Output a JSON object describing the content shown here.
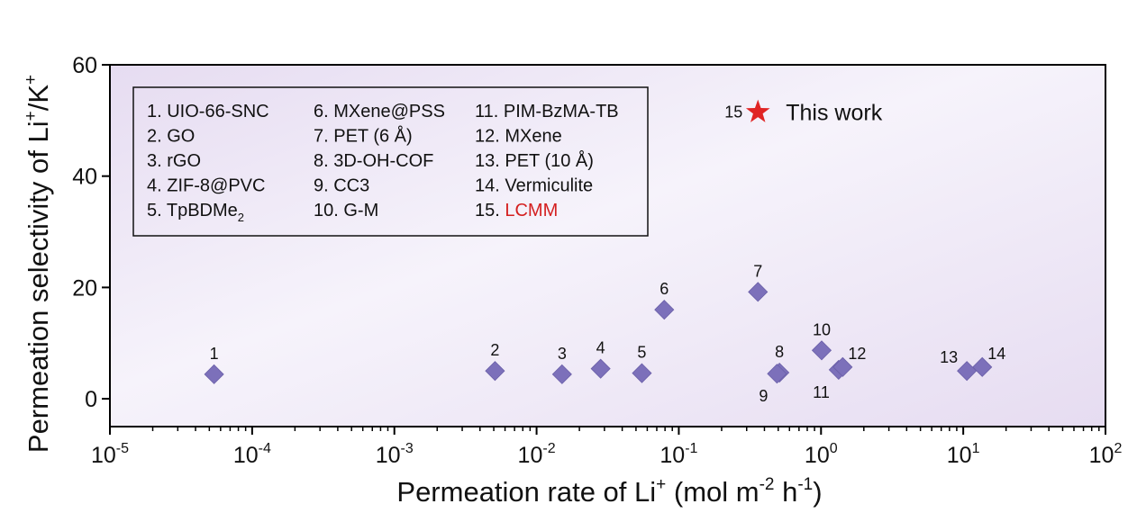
{
  "chart_data": {
    "type": "scatter",
    "xlabel": {
      "prefix": "Permeation rate of Li",
      "sup1": "+",
      "mid": " (mol m",
      "sup2": "-2",
      "mid2": " h",
      "sup3": "-1",
      "suffix": ")"
    },
    "ylabel": {
      "prefix": "Permeation selectivity of Li",
      "sup1": "+",
      "mid": "/K",
      "sup2": "+"
    },
    "x_scale": "log",
    "xlim": [
      1e-05,
      100
    ],
    "ylim": [
      -5,
      60
    ],
    "x_ticks": [
      {
        "base": "10",
        "exp": "-5",
        "value": 1e-05
      },
      {
        "base": "10",
        "exp": "-4",
        "value": 0.0001
      },
      {
        "base": "10",
        "exp": "-3",
        "value": 0.001
      },
      {
        "base": "10",
        "exp": "-2",
        "value": 0.01
      },
      {
        "base": "10",
        "exp": "-1",
        "value": 0.1
      },
      {
        "base": "10",
        "exp": "0",
        "value": 1
      },
      {
        "base": "10",
        "exp": "1",
        "value": 10
      },
      {
        "base": "10",
        "exp": "2",
        "value": 100
      }
    ],
    "y_ticks": [
      {
        "label": "0",
        "value": 0
      },
      {
        "label": "20",
        "value": 20
      },
      {
        "label": "40",
        "value": 40
      },
      {
        "label": "60",
        "value": 60
      }
    ],
    "points": [
      {
        "label": "1",
        "x": 5.4e-05,
        "y": 4.4,
        "label_pos": "above"
      },
      {
        "label": "2",
        "x": 0.0051,
        "y": 5.0,
        "label_pos": "above"
      },
      {
        "label": "3",
        "x": 0.0151,
        "y": 4.4,
        "label_pos": "above"
      },
      {
        "label": "4",
        "x": 0.0282,
        "y": 5.4,
        "label_pos": "above"
      },
      {
        "label": "5",
        "x": 0.055,
        "y": 4.6,
        "label_pos": "above"
      },
      {
        "label": "6",
        "x": 0.079,
        "y": 16.0,
        "label_pos": "above"
      },
      {
        "label": "7",
        "x": 0.36,
        "y": 19.2,
        "label_pos": "above"
      },
      {
        "label": "8",
        "x": 0.51,
        "y": 4.7,
        "label_pos": "above"
      },
      {
        "label": "9",
        "x": 0.49,
        "y": 4.5,
        "label_pos": "below-left"
      },
      {
        "label": "10",
        "x": 1.01,
        "y": 8.7,
        "label_pos": "above"
      },
      {
        "label": "11",
        "x": 1.33,
        "y": 5.2,
        "label_pos": "below-left"
      },
      {
        "label": "12",
        "x": 1.42,
        "y": 5.7,
        "label_pos": "above-right"
      },
      {
        "label": "13",
        "x": 10.6,
        "y": 5.0,
        "label_pos": "above-left"
      },
      {
        "label": "14",
        "x": 13.6,
        "y": 5.7,
        "label_pos": "above-right"
      }
    ],
    "highlight": {
      "label": "15",
      "text": "This work",
      "x": 0.36,
      "y": 51.5
    },
    "colors": {
      "marker": "#7c70ba",
      "star": "#e02424",
      "highlight_text": "#d42020",
      "bg_light": "#f6f3fb",
      "bg_dark": "#e6dcf1"
    },
    "legend": {
      "columns": [
        [
          {
            "text": "1. UIO-66-SNC"
          },
          {
            "text": "2. GO"
          },
          {
            "text": "3. rGO"
          },
          {
            "text": "4. ZIF-8@PVC"
          },
          {
            "text": "5. TpBDMe",
            "sub": "2"
          }
        ],
        [
          {
            "text": "6. MXene@PSS"
          },
          {
            "text": "7. PET (6 Å)"
          },
          {
            "text": "8. 3D-OH-COF"
          },
          {
            "text": "9. CC3"
          },
          {
            "text": "10. G-M"
          }
        ],
        [
          {
            "text": "11. PIM-BzMA-TB"
          },
          {
            "text": "12. MXene"
          },
          {
            "text": "13. PET (10 Å)"
          },
          {
            "text": "14. Vermiculite"
          },
          {
            "text": "15. ",
            "red": "LCMM"
          }
        ]
      ]
    }
  }
}
